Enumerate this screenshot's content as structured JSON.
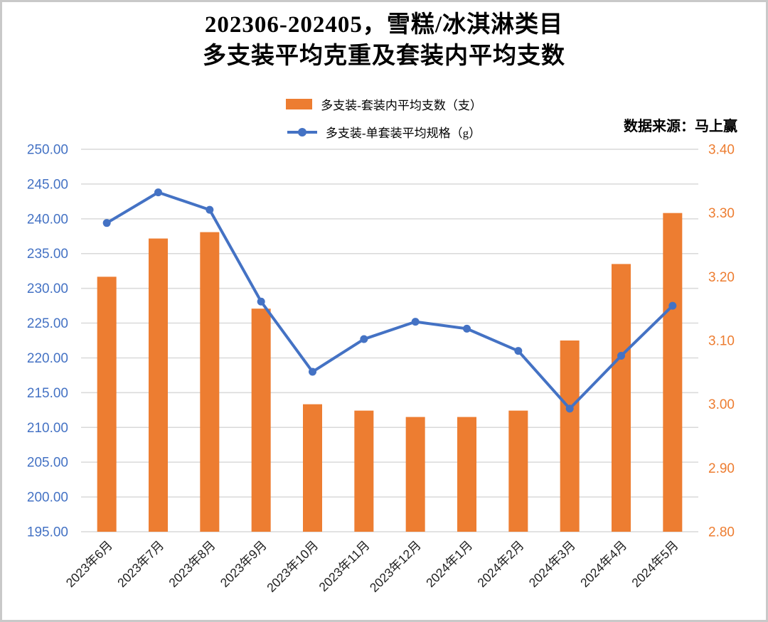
{
  "title": {
    "line1": "202306-202405，雪糕/冰淇淋类目",
    "line2": "多支装平均克重及套装内平均支数"
  },
  "source_label": "数据来源：马上赢",
  "legend": {
    "items": [
      {
        "label": "多支装-套装内平均支数（支）",
        "marker": "bar",
        "color": "#ED7D31"
      },
      {
        "label": "多支装-单套装平均规格（g）",
        "marker": "line-dot",
        "color": "#4472C4"
      }
    ]
  },
  "chart_data": {
    "type": "combo-bar-line",
    "title": "202306-202405，雪糕/冰淇淋类目 多支装平均克重及套装内平均支数",
    "categories": [
      "2023年6月",
      "2023年7月",
      "2023年8月",
      "2023年9月",
      "2023年10月",
      "2023年11月",
      "2023年12月",
      "2024年1月",
      "2024年2月",
      "2024年3月",
      "2024年4月",
      "2024年5月"
    ],
    "series": [
      {
        "name": "多支装-套装内平均支数（支）",
        "chart_type": "bar",
        "axis": "right",
        "color": "#ED7D31",
        "values": [
          3.2,
          3.26,
          3.27,
          3.15,
          3.0,
          2.99,
          2.98,
          2.98,
          2.99,
          3.1,
          3.22,
          3.3
        ]
      },
      {
        "name": "多支装-单套装平均规格（g）",
        "chart_type": "line",
        "axis": "left",
        "color": "#4472C4",
        "values": [
          239.4,
          243.8,
          241.3,
          228.1,
          218.0,
          222.7,
          225.2,
          224.2,
          221.0,
          212.7,
          220.3,
          227.5
        ]
      }
    ],
    "left_axis": {
      "min": 195,
      "max": 250,
      "step": 5,
      "color": "#4472C4",
      "tick_labels": [
        "250.00",
        "245.00",
        "240.00",
        "235.00",
        "230.00",
        "225.00",
        "220.00",
        "215.00",
        "210.00",
        "205.00",
        "200.00",
        "195.00"
      ]
    },
    "right_axis": {
      "min": 2.8,
      "max": 3.4,
      "step": 0.1,
      "color": "#ED7D31",
      "tick_labels": [
        "3.40",
        "3.30",
        "3.20",
        "3.10",
        "3.00",
        "2.90",
        "2.80"
      ]
    },
    "grid": true,
    "gridline_color": "#D9D9D9",
    "legend_position": "top",
    "x_label_rotation": -45
  }
}
